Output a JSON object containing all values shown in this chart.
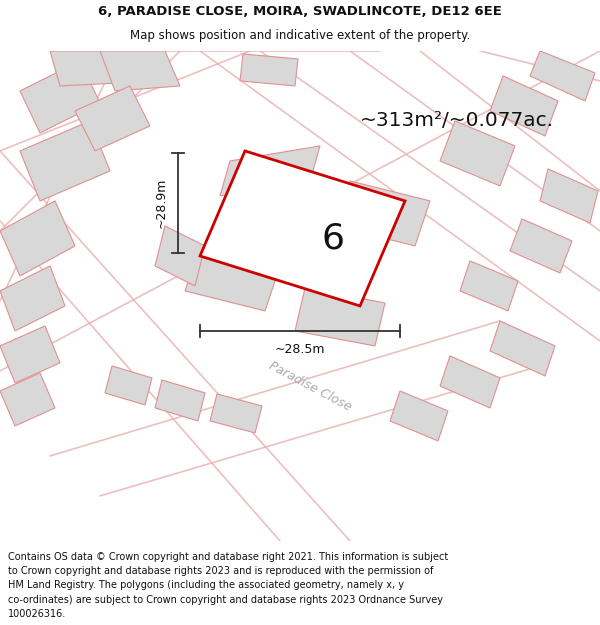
{
  "title_line1": "6, PARADISE CLOSE, MOIRA, SWADLINCOTE, DE12 6EE",
  "title_line2": "Map shows position and indicative extent of the property.",
  "area_text": "~313m²/~0.077ac.",
  "plot_number": "6",
  "dim_height": "~28.9m",
  "dim_width": "~28.5m",
  "road_label": "Paradise Close",
  "footer_lines": [
    "Contains OS data © Crown copyright and database right 2021. This information is subject",
    "to Crown copyright and database rights 2023 and is reproduced with the permission of",
    "HM Land Registry. The polygons (including the associated geometry, namely x, y",
    "co-ordinates) are subject to Crown copyright and database rights 2023 Ordnance Survey",
    "100026316."
  ],
  "bg_color": "#ffffff",
  "map_bg": "#ffffff",
  "plot_fill": "#ffffff",
  "plot_edge": "#cc0000",
  "building_fill": "#d8d8d8",
  "building_edge": "#e09090",
  "dim_line_color": "#333333",
  "text_color": "#111111",
  "road_line_color": "#e8b0b0",
  "road_fill": "#efefef"
}
